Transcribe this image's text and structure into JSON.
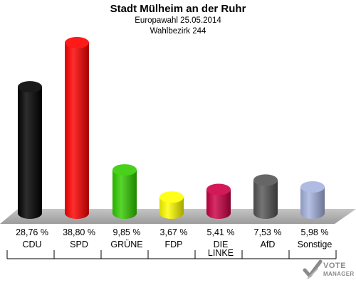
{
  "chart_data": {
    "type": "bar",
    "title": "Stadt Mülheim an der Ruhr",
    "subtitle_lines": [
      "Europawahl 25.05.2014",
      "Wahlbezirk 244"
    ],
    "categories": [
      "CDU",
      "SPD",
      "GRÜNE",
      "FDP",
      "DIE LINKE",
      "AfD",
      "Sonstige"
    ],
    "category_lines": [
      [
        "CDU"
      ],
      [
        "SPD"
      ],
      [
        "GRÜNE"
      ],
      [
        "FDP"
      ],
      [
        "DIE",
        "LINKE"
      ],
      [
        "AfD"
      ],
      [
        "Sonstige"
      ]
    ],
    "values": [
      28.76,
      38.8,
      9.85,
      3.67,
      5.41,
      7.53,
      5.98
    ],
    "value_labels": [
      "28,76 %",
      "38,80 %",
      "9,85 %",
      "3,67 %",
      "5,41 %",
      "7,53 %",
      "5,98 %"
    ],
    "colors": [
      "#000000",
      "#ff0000",
      "#33cc00",
      "#ffff00",
      "#cc0044",
      "#555555",
      "#a6b3e0"
    ],
    "unit": "%",
    "ylim": [
      0,
      38.8
    ],
    "grid": false,
    "legend": "none"
  },
  "logo": {
    "line1": "VOTE",
    "line2": "MANAGER"
  }
}
